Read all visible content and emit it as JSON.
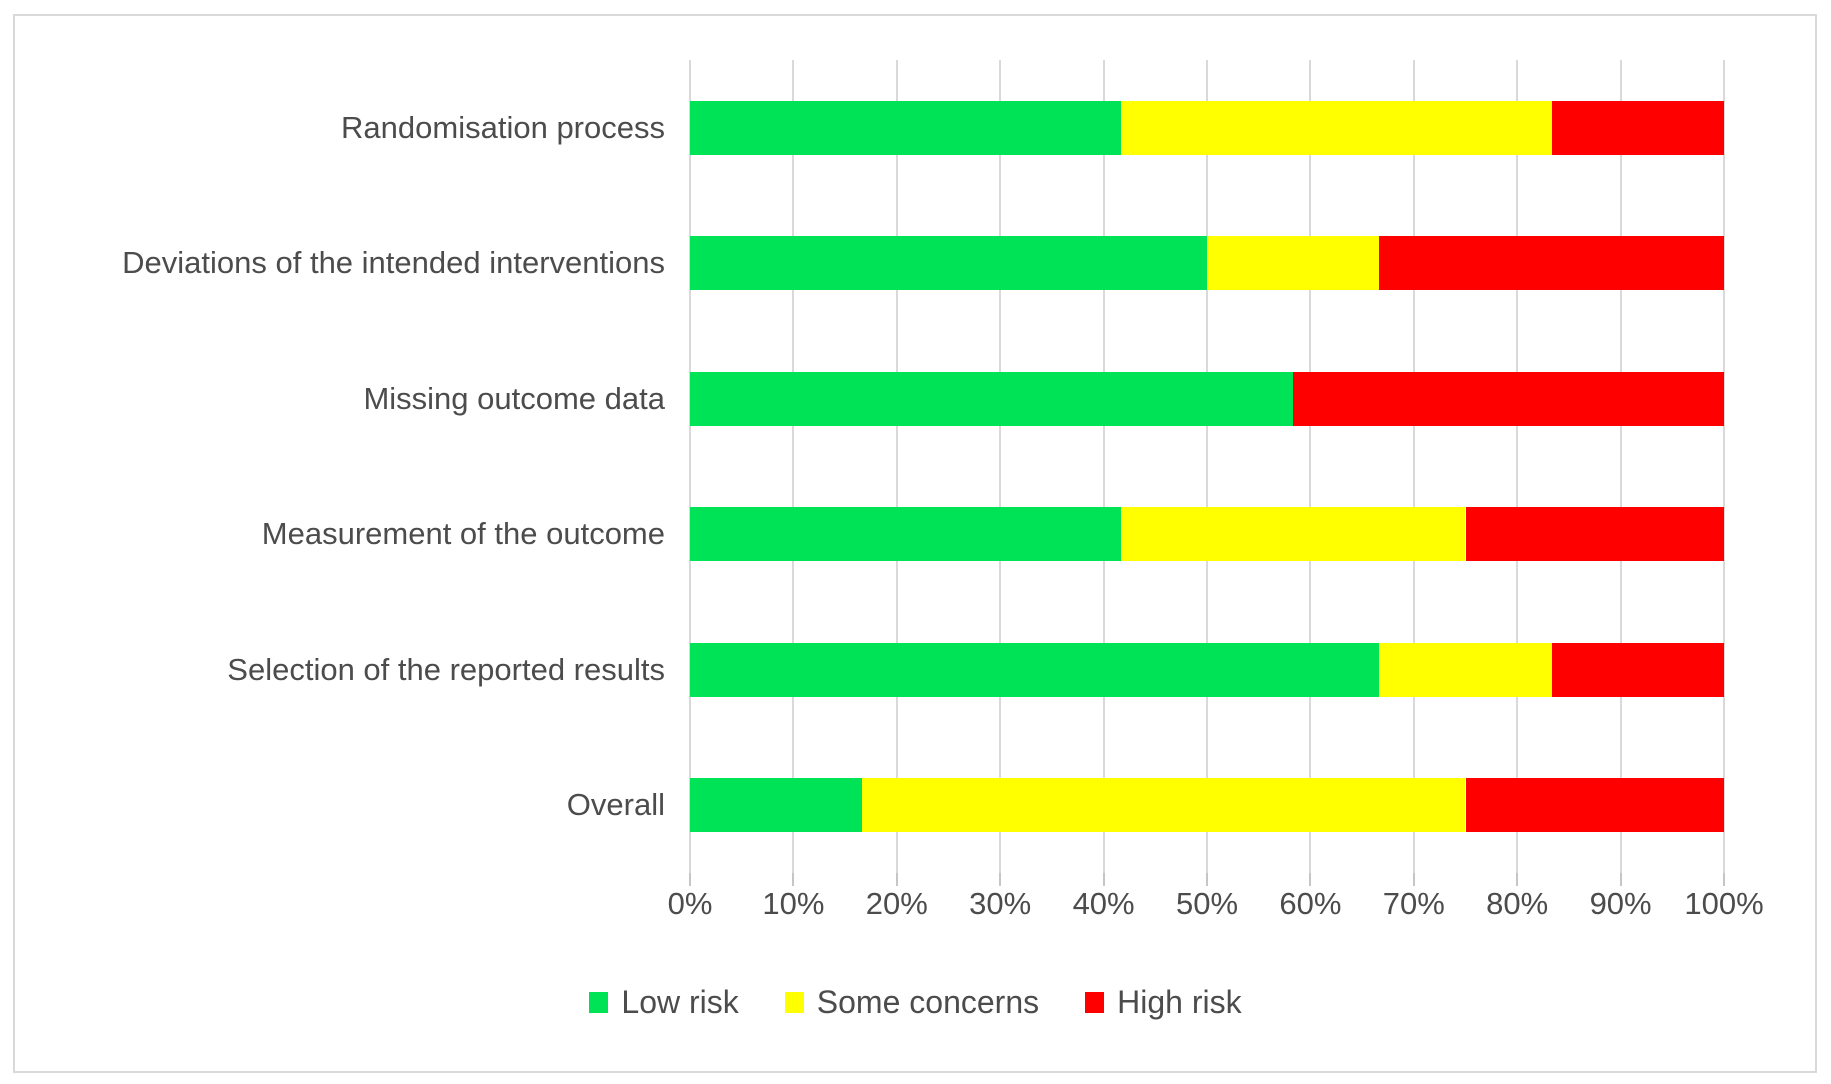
{
  "figure": {
    "background": "#ffffff",
    "border_color": "#d9d9d9"
  },
  "colors": {
    "low_risk": "#00e356",
    "some_concerns": "#ffff00",
    "high_risk": "#fe0000",
    "gridline": "#d9d9d9",
    "tick_mark": "#c6c6c6",
    "text": "#4c4c4c"
  },
  "chart_data": {
    "type": "bar",
    "orientation": "horizontal",
    "stacked": true,
    "title": "",
    "xlabel": "",
    "ylabel": "",
    "xlim": [
      0,
      100
    ],
    "grid": true,
    "legend_position": "bottom",
    "categories": [
      "Randomisation process",
      "Deviations of the intended interventions",
      "Missing outcome data",
      "Measurement of the outcome",
      "Selection of the reported results",
      "Overall"
    ],
    "series": [
      {
        "name": "Low risk",
        "color": "#00e356",
        "values": [
          41.67,
          50.0,
          58.33,
          41.67,
          66.67,
          16.67
        ]
      },
      {
        "name": "Some concerns",
        "color": "#ffff00",
        "values": [
          41.67,
          16.67,
          0.0,
          33.33,
          16.67,
          58.33
        ]
      },
      {
        "name": "High risk",
        "color": "#fe0000",
        "values": [
          16.66,
          33.33,
          41.67,
          25.0,
          16.66,
          25.0
        ]
      }
    ],
    "x_ticks": [
      "0%",
      "10%",
      "20%",
      "30%",
      "40%",
      "50%",
      "60%",
      "70%",
      "80%",
      "90%",
      "100%"
    ]
  },
  "legend": {
    "items": [
      {
        "label": "Low risk",
        "color": "#00e356"
      },
      {
        "label": "Some concerns",
        "color": "#ffff00"
      },
      {
        "label": "High risk",
        "color": "#fe0000"
      }
    ]
  }
}
